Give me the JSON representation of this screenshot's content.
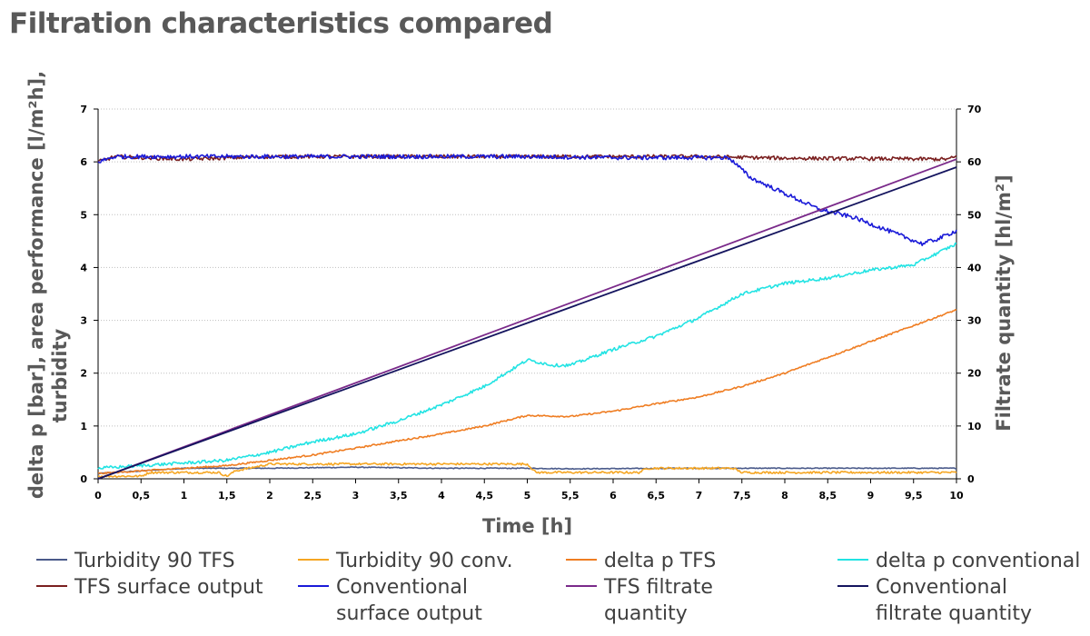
{
  "chart_data": {
    "type": "line",
    "title": "Filtration characteristics compared",
    "xlabel": "Time [h]",
    "ylabel_left": [
      "delta p [bar], area performance [l/m²h],",
      "turbidity"
    ],
    "ylabel_right": "Filtrate quantity [hl/m²]",
    "xlim": [
      0,
      10
    ],
    "ylim_left": [
      0,
      7
    ],
    "ylim_right": [
      0,
      70
    ],
    "x_ticks": [
      "0",
      "0,5",
      "1",
      "1,5",
      "2",
      "2,5",
      "3",
      "3,5",
      "4",
      "4,5",
      "5",
      "5,5",
      "6",
      "6,5",
      "7",
      "7,5",
      "8",
      "8,5",
      "9",
      "9,5",
      "10"
    ],
    "y_ticks_left": [
      "0",
      "1",
      "2",
      "3",
      "4",
      "5",
      "6",
      "7"
    ],
    "y_ticks_right": [
      "0",
      "10",
      "20",
      "30",
      "40",
      "50",
      "60",
      "70"
    ],
    "grid": "horizontal",
    "legend_position": "bottom",
    "series": [
      {
        "name": "Turbidity 90 TFS",
        "axis": "left",
        "color": "#4a5a8a",
        "noise": 0.008,
        "points": [
          [
            0,
            0.1
          ],
          [
            0.5,
            0.15
          ],
          [
            1,
            0.2
          ],
          [
            2,
            0.2
          ],
          [
            3,
            0.22
          ],
          [
            4,
            0.2
          ],
          [
            5,
            0.2
          ],
          [
            5.5,
            0.19
          ],
          [
            7,
            0.2
          ],
          [
            8,
            0.2
          ],
          [
            9,
            0.2
          ],
          [
            10,
            0.2
          ]
        ]
      },
      {
        "name": "Turbidity 90 conv.",
        "axis": "left",
        "color": "#f5a623",
        "noise": 0.02,
        "points": [
          [
            0,
            0.05
          ],
          [
            0.5,
            0.05
          ],
          [
            0.6,
            0.12
          ],
          [
            1.4,
            0.12
          ],
          [
            1.5,
            0.05
          ],
          [
            1.6,
            0.15
          ],
          [
            2,
            0.28
          ],
          [
            3,
            0.28
          ],
          [
            4,
            0.28
          ],
          [
            5,
            0.28
          ],
          [
            5.1,
            0.12
          ],
          [
            5.3,
            0.12
          ],
          [
            6.3,
            0.12
          ],
          [
            6.4,
            0.2
          ],
          [
            7.4,
            0.2
          ],
          [
            7.5,
            0.12
          ],
          [
            10,
            0.12
          ]
        ]
      },
      {
        "name": "delta p TFS",
        "axis": "left",
        "color": "#ef7d22",
        "noise": 0.015,
        "points": [
          [
            0,
            0.1
          ],
          [
            0.5,
            0.15
          ],
          [
            1,
            0.2
          ],
          [
            1.5,
            0.25
          ],
          [
            2,
            0.35
          ],
          [
            2.5,
            0.45
          ],
          [
            3,
            0.58
          ],
          [
            3.5,
            0.72
          ],
          [
            4,
            0.85
          ],
          [
            4.5,
            1.0
          ],
          [
            5,
            1.2
          ],
          [
            5.5,
            1.18
          ],
          [
            6,
            1.28
          ],
          [
            6.5,
            1.42
          ],
          [
            7,
            1.55
          ],
          [
            7.5,
            1.75
          ],
          [
            8,
            2.0
          ],
          [
            8.5,
            2.3
          ],
          [
            9,
            2.6
          ],
          [
            9.5,
            2.9
          ],
          [
            10,
            3.2
          ]
        ]
      },
      {
        "name": "TFS surface output",
        "axis": "left",
        "color": "#7a1f1f",
        "noise": 0.035,
        "points": [
          [
            0,
            6.0
          ],
          [
            0.2,
            6.1
          ],
          [
            1,
            6.05
          ],
          [
            2,
            6.1
          ],
          [
            3,
            6.1
          ],
          [
            4,
            6.1
          ],
          [
            5,
            6.1
          ],
          [
            6,
            6.1
          ],
          [
            7,
            6.1
          ],
          [
            8,
            6.07
          ],
          [
            9,
            6.06
          ],
          [
            9.9,
            6.05
          ],
          [
            10,
            6.1
          ]
        ]
      },
      {
        "name": "Conventional surface output",
        "axis": "left",
        "color": "#1a1ad8",
        "noise": 0.04,
        "points": [
          [
            0,
            6.0
          ],
          [
            0.2,
            6.1
          ],
          [
            1,
            6.1
          ],
          [
            2,
            6.1
          ],
          [
            3,
            6.1
          ],
          [
            4,
            6.1
          ],
          [
            5,
            6.1
          ],
          [
            6,
            6.08
          ],
          [
            7,
            6.08
          ],
          [
            7.35,
            6.08
          ],
          [
            7.6,
            5.7
          ],
          [
            8,
            5.4
          ],
          [
            8.4,
            5.1
          ],
          [
            8.8,
            4.95
          ],
          [
            9.2,
            4.7
          ],
          [
            9.6,
            4.45
          ],
          [
            9.8,
            4.55
          ],
          [
            10,
            4.7
          ]
        ]
      },
      {
        "name": "delta p conventional",
        "axis": "left",
        "color": "#22e3e3",
        "noise": 0.03,
        "points": [
          [
            0,
            0.2
          ],
          [
            0.5,
            0.25
          ],
          [
            1,
            0.3
          ],
          [
            1.5,
            0.35
          ],
          [
            2,
            0.5
          ],
          [
            2.5,
            0.7
          ],
          [
            3,
            0.85
          ],
          [
            3.5,
            1.1
          ],
          [
            4,
            1.4
          ],
          [
            4.5,
            1.75
          ],
          [
            5,
            2.25
          ],
          [
            5.3,
            2.15
          ],
          [
            5.5,
            2.15
          ],
          [
            6,
            2.45
          ],
          [
            6.5,
            2.7
          ],
          [
            7,
            3.05
          ],
          [
            7.5,
            3.5
          ],
          [
            8,
            3.7
          ],
          [
            8.5,
            3.8
          ],
          [
            9,
            3.95
          ],
          [
            9.5,
            4.05
          ],
          [
            10,
            4.45
          ]
        ]
      },
      {
        "name": "TFS filtrate quantity",
        "axis": "right",
        "color": "#7a2a8a",
        "noise": 0,
        "points": [
          [
            0,
            0
          ],
          [
            10,
            60.5
          ]
        ]
      },
      {
        "name": "Conventional filtrate quantity",
        "axis": "right",
        "color": "#14145e",
        "noise": 0,
        "points": [
          [
            0,
            0
          ],
          [
            10,
            59
          ]
        ]
      }
    ],
    "legend": [
      {
        "label": "Turbidity 90 TFS",
        "color": "#4a5a8a"
      },
      {
        "label": "Turbidity 90 conv.",
        "color": "#f5a623"
      },
      {
        "label": "delta p TFS",
        "color": "#ef7d22"
      },
      {
        "label": "delta p conventional",
        "color": "#22e3e3"
      },
      {
        "label": "TFS surface output",
        "color": "#7a1f1f"
      },
      {
        "label": "Conventional surface output",
        "color": "#1a1ad8"
      },
      {
        "label": "TFS filtrate quantity",
        "color": "#7a2a8a"
      },
      {
        "label": "Conventional filtrate quantity",
        "color": "#14145e"
      }
    ]
  }
}
